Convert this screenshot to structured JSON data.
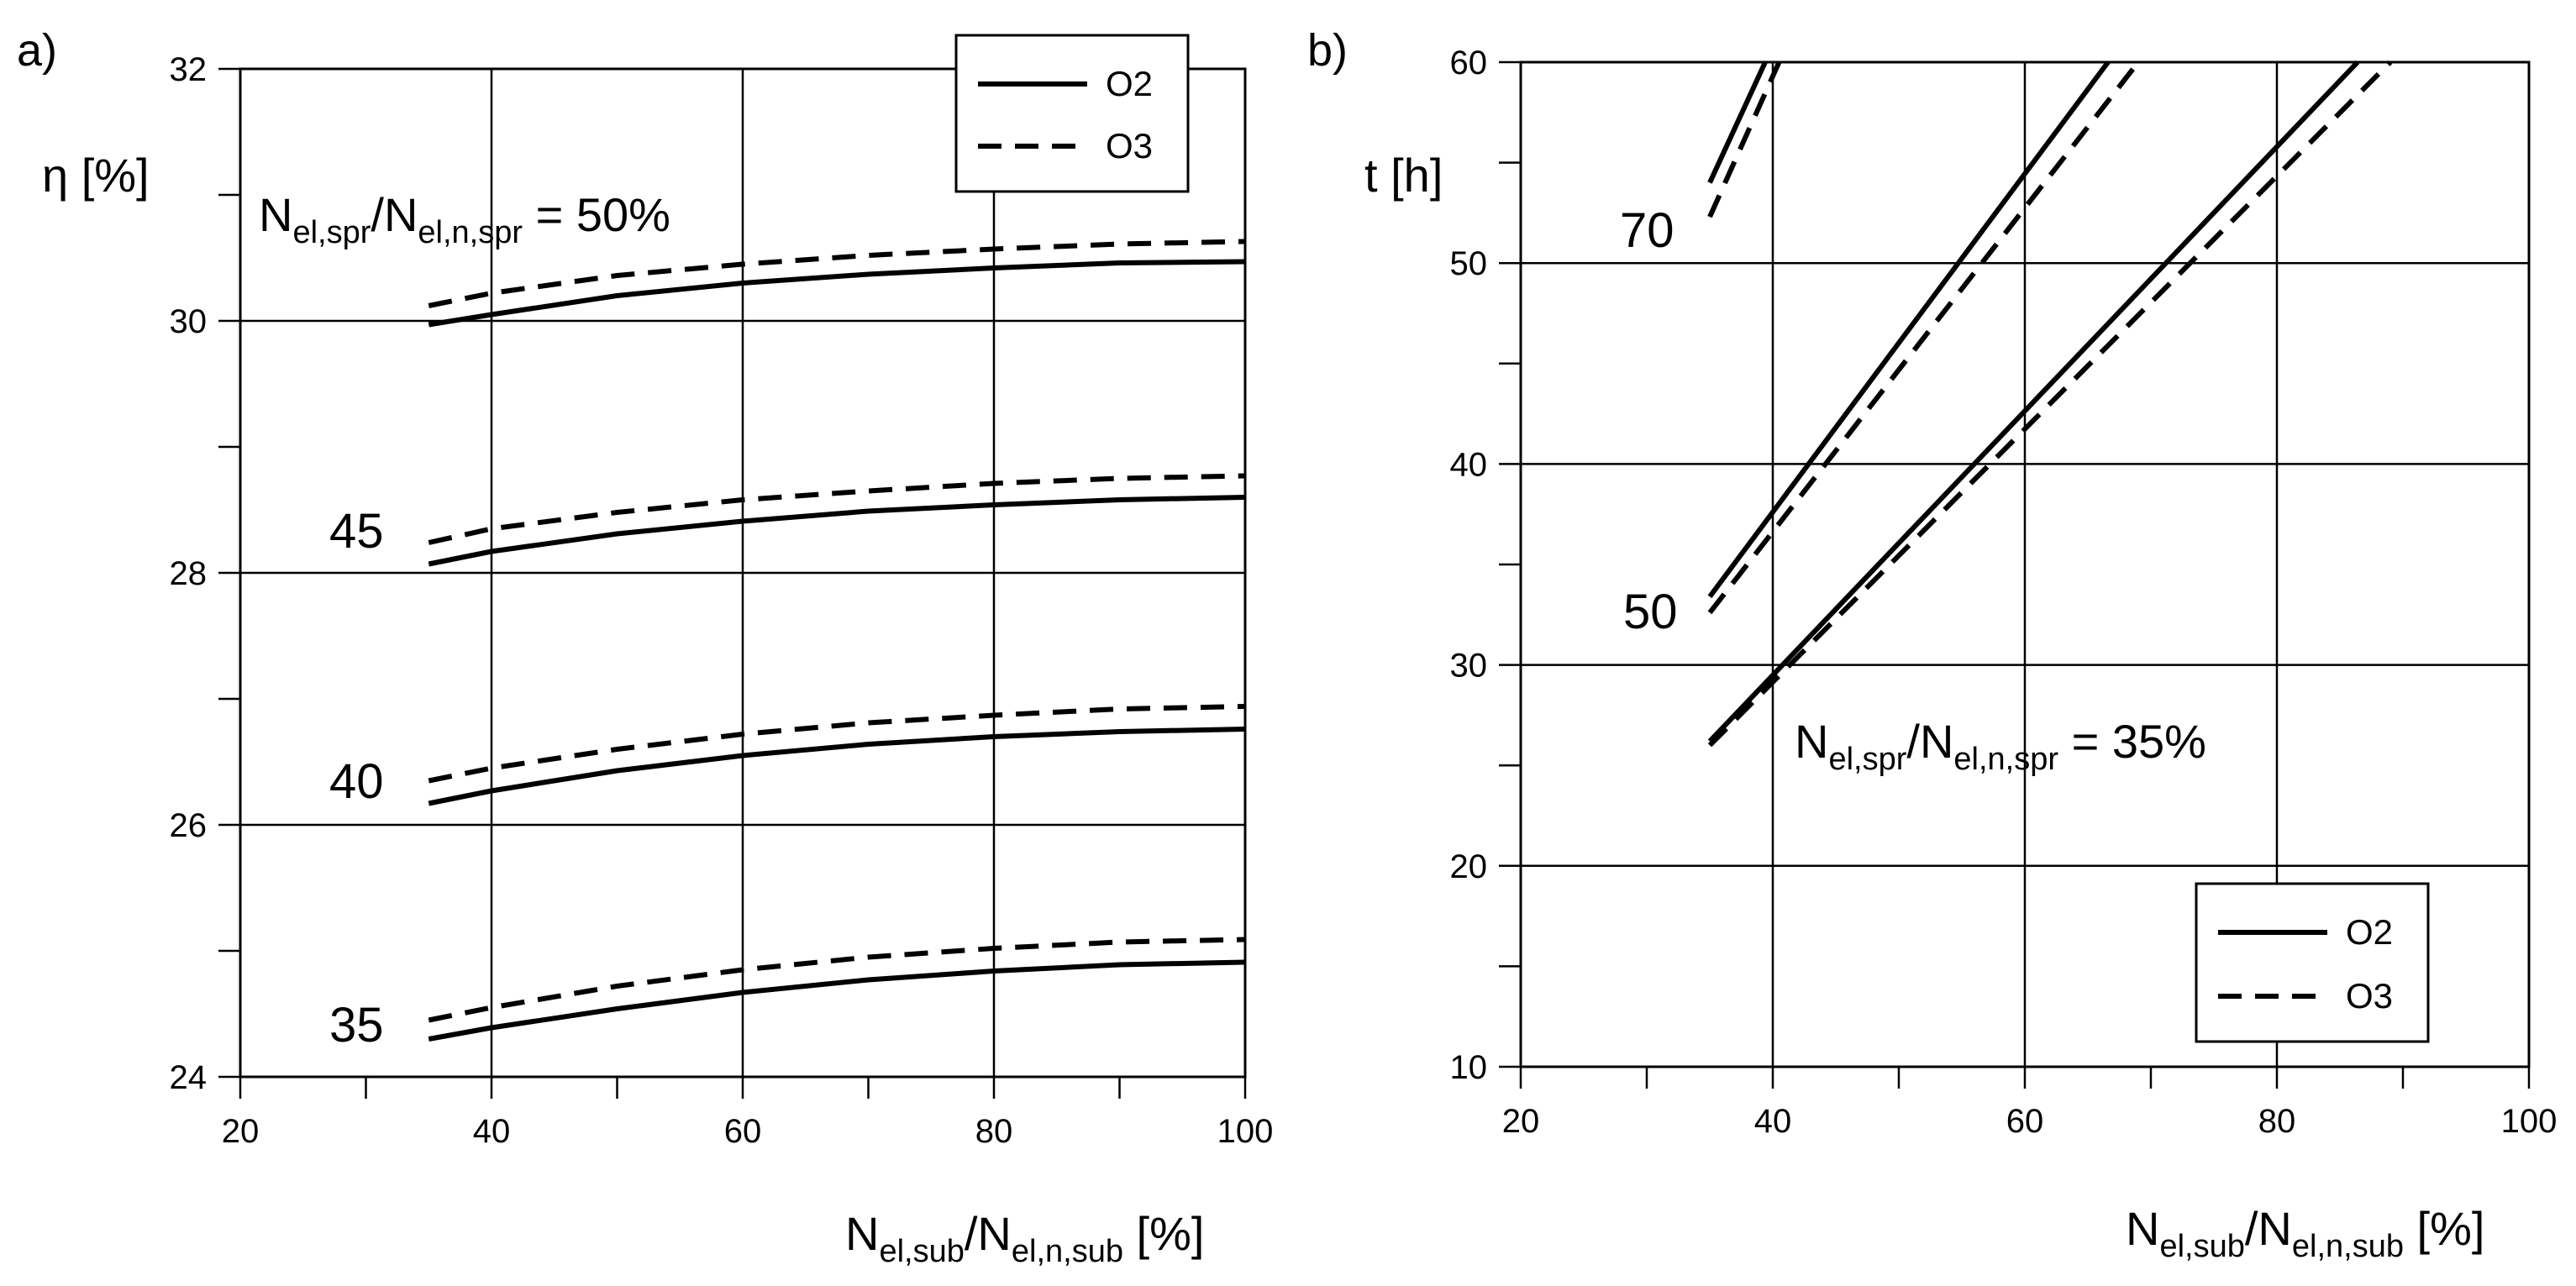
{
  "chart_data": [
    {
      "type": "line",
      "panel_label": "a)",
      "xlabel": {
        "base1": "N",
        "sub1": "el,sub",
        "slash": "/",
        "base2": "N",
        "sub2": "el,n,sub",
        "unit": " [%]"
      },
      "ylabel": "η [%]",
      "xlim": [
        20,
        100
      ],
      "ylim": [
        24,
        32
      ],
      "xticks": [
        20,
        30,
        40,
        50,
        60,
        70,
        80,
        90,
        100
      ],
      "xtick_labels": [
        "20",
        "",
        "40",
        "",
        "60",
        "",
        "80",
        "",
        "100"
      ],
      "yticks": [
        24,
        25,
        26,
        27,
        28,
        29,
        30,
        31,
        32
      ],
      "ytick_labels": [
        "24",
        "",
        "26",
        "",
        "28",
        "",
        "30",
        "",
        "32"
      ],
      "grid": "major",
      "legend": {
        "position": "top-right",
        "entries": [
          {
            "name": "O2",
            "style": "solid"
          },
          {
            "name": "O3",
            "style": "dashed"
          }
        ]
      },
      "annotation": {
        "base1": "N",
        "sub1": "el,spr",
        "slash": "/",
        "base2": "N",
        "sub2": "el,n,spr",
        "rest": " = 50%"
      },
      "curve_labels": [
        "45",
        "40",
        "35"
      ],
      "x": [
        35,
        40,
        50,
        60,
        70,
        80,
        90,
        100
      ],
      "series": [
        {
          "name": "O2",
          "group": "50",
          "style": "solid",
          "values": [
            29.97,
            30.05,
            30.2,
            30.3,
            30.37,
            30.42,
            30.46,
            30.47
          ]
        },
        {
          "name": "O3",
          "group": "50",
          "style": "dashed",
          "values": [
            30.12,
            30.22,
            30.36,
            30.45,
            30.52,
            30.57,
            30.61,
            30.63
          ]
        },
        {
          "name": "O2",
          "group": "45",
          "style": "solid",
          "values": [
            28.07,
            28.17,
            28.31,
            28.41,
            28.49,
            28.54,
            28.58,
            28.6
          ]
        },
        {
          "name": "O3",
          "group": "45",
          "style": "dashed",
          "values": [
            28.24,
            28.35,
            28.48,
            28.58,
            28.65,
            28.71,
            28.75,
            28.77
          ]
        },
        {
          "name": "O2",
          "group": "40",
          "style": "solid",
          "values": [
            26.17,
            26.27,
            26.43,
            26.55,
            26.64,
            26.7,
            26.74,
            26.76
          ]
        },
        {
          "name": "O3",
          "group": "40",
          "style": "dashed",
          "values": [
            26.35,
            26.45,
            26.6,
            26.72,
            26.81,
            26.87,
            26.92,
            26.94
          ]
        },
        {
          "name": "O2",
          "group": "35",
          "style": "solid",
          "values": [
            24.3,
            24.39,
            24.54,
            24.67,
            24.77,
            24.84,
            24.89,
            24.91
          ]
        },
        {
          "name": "O3",
          "group": "35",
          "style": "dashed",
          "values": [
            24.45,
            24.55,
            24.72,
            24.85,
            24.95,
            25.02,
            25.07,
            25.09
          ]
        }
      ]
    },
    {
      "type": "line",
      "panel_label": "b)",
      "xlabel": {
        "base1": "N",
        "sub1": "el,sub",
        "slash": "/",
        "base2": "N",
        "sub2": "el,n,sub",
        "unit": " [%]"
      },
      "ylabel": "t [h]",
      "xlim": [
        20,
        100
      ],
      "ylim": [
        10,
        60
      ],
      "xticks": [
        20,
        30,
        40,
        50,
        60,
        70,
        80,
        90,
        100
      ],
      "xtick_labels": [
        "20",
        "",
        "40",
        "",
        "60",
        "",
        "80",
        "",
        "100"
      ],
      "yticks": [
        10,
        15,
        20,
        25,
        30,
        35,
        40,
        45,
        50,
        55,
        60
      ],
      "ytick_labels": [
        "10",
        "",
        "20",
        "",
        "30",
        "",
        "40",
        "",
        "50",
        "",
        "60"
      ],
      "grid": "major",
      "legend": {
        "position": "bottom-right",
        "entries": [
          {
            "name": "O2",
            "style": "solid"
          },
          {
            "name": "O3",
            "style": "dashed"
          }
        ]
      },
      "annotation": {
        "base1": "N",
        "sub1": "el,spr",
        "slash": "/",
        "base2": "N",
        "sub2": "el,n,spr",
        "rest": " = 35%"
      },
      "curve_labels": [
        "70",
        "50"
      ],
      "series": [
        {
          "name": "O2",
          "group": "70",
          "style": "solid",
          "x": [
            35,
            39.4
          ],
          "values": [
            54,
            60
          ]
        },
        {
          "name": "O3",
          "group": "70",
          "style": "dashed",
          "x": [
            35,
            40.5
          ],
          "values": [
            52.3,
            60
          ]
        },
        {
          "name": "O2",
          "group": "50",
          "style": "solid",
          "x": [
            35,
            66.6
          ],
          "values": [
            33.4,
            60
          ]
        },
        {
          "name": "O3",
          "group": "50",
          "style": "dashed",
          "x": [
            35,
            69
          ],
          "values": [
            32.6,
            60
          ]
        },
        {
          "name": "O2",
          "group": "35",
          "style": "solid",
          "x": [
            35,
            86.4
          ],
          "values": [
            26.2,
            60
          ]
        },
        {
          "name": "O3",
          "group": "35",
          "style": "dashed",
          "x": [
            35,
            89
          ],
          "values": [
            26,
            60
          ]
        }
      ]
    }
  ]
}
